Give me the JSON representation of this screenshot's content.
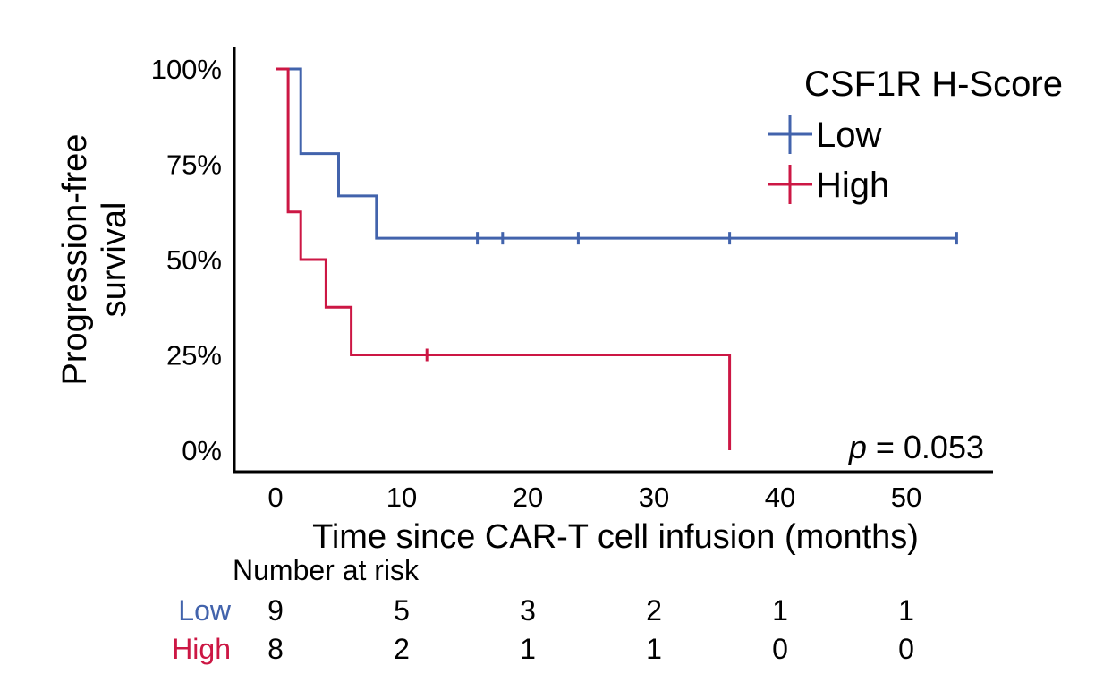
{
  "chart_data": {
    "type": "kaplan-meier",
    "xlabel": "Time since CAR-T cell infusion (months)",
    "ylabel_line1": "Progression-free",
    "ylabel_line2": "survival",
    "xlim": [
      -2,
      58
    ],
    "ylim": [
      0,
      1
    ],
    "xticks": [
      0,
      10,
      20,
      30,
      40,
      50
    ],
    "xtick_labels": [
      "0",
      "10",
      "20",
      "30",
      "40",
      "50"
    ],
    "yticks": [
      0,
      0.25,
      0.5,
      0.75,
      1.0
    ],
    "ytick_labels": [
      "0%",
      "25%",
      "50%",
      "75%",
      "100%"
    ],
    "legend_title": "CSF1R H-Score",
    "legend_position": "top-right",
    "p_value_label": "p",
    "p_value_text": " = 0.053",
    "series": [
      {
        "name": "Low",
        "color": "#4263ac",
        "steps": [
          [
            0,
            1.0
          ],
          [
            2,
            0.778
          ],
          [
            5,
            0.667
          ],
          [
            8,
            0.556
          ],
          [
            54,
            0.556
          ]
        ],
        "censor_times": [
          16,
          18,
          24,
          36,
          54
        ]
      },
      {
        "name": "High",
        "color": "#cc1744",
        "steps": [
          [
            0,
            1.0
          ],
          [
            1,
            0.625
          ],
          [
            2,
            0.5
          ],
          [
            4,
            0.375
          ],
          [
            6,
            0.25
          ],
          [
            36,
            0.25
          ],
          [
            36,
            0.0
          ]
        ],
        "censor_times": [
          12
        ]
      }
    ],
    "risk_table": {
      "title": "Number at risk",
      "times": [
        0,
        10,
        20,
        30,
        40,
        50
      ],
      "rows": [
        {
          "name": "Low",
          "color": "#4263ac",
          "values": [
            "9",
            "5",
            "3",
            "2",
            "1",
            "1"
          ]
        },
        {
          "name": "High",
          "color": "#cc1744",
          "values": [
            "8",
            "2",
            "1",
            "1",
            "0",
            "0"
          ]
        }
      ]
    }
  }
}
